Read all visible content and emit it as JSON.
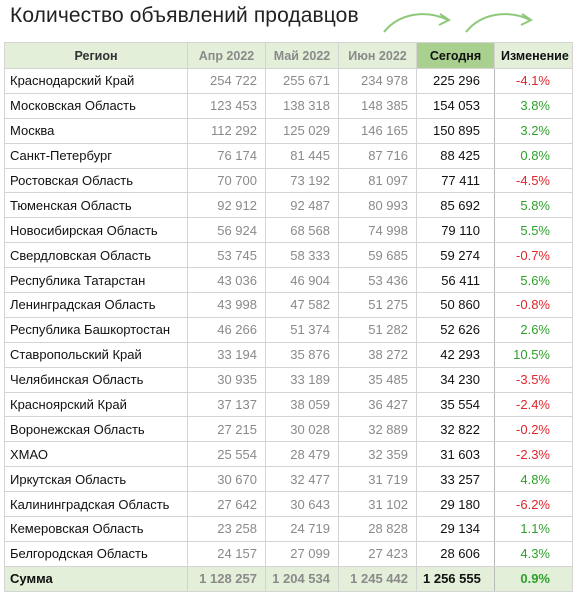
{
  "title": "Количество объявлений продавцов",
  "colors": {
    "header_bg": "#e3efd9",
    "today_header_bg": "#a9d08e",
    "negative": "#e0262b",
    "positive": "#2ea12a",
    "arrow": "#8fc87a"
  },
  "icons": [
    "arrow-icon",
    "arrow-icon"
  ],
  "headers": {
    "region": "Регион",
    "apr": "Апр 2022",
    "may": "Май 2022",
    "jun": "Июн 2022",
    "today": "Сегодня",
    "change": "Изменение"
  },
  "rows": [
    {
      "region": "Краснодарский Край",
      "apr": "254 722",
      "may": "255 671",
      "jun": "234 978",
      "today": "225 296",
      "change": "-4.1%",
      "trend": "neg"
    },
    {
      "region": "Московская Область",
      "apr": "123 453",
      "may": "138 318",
      "jun": "148 385",
      "today": "154 053",
      "change": "3.8%",
      "trend": "pos"
    },
    {
      "region": "Москва",
      "apr": "112 292",
      "may": "125 029",
      "jun": "146 165",
      "today": "150 895",
      "change": "3.2%",
      "trend": "pos"
    },
    {
      "region": "Санкт-Петербург",
      "apr": "76 174",
      "may": "81 445",
      "jun": "87 716",
      "today": "88 425",
      "change": "0.8%",
      "trend": "pos"
    },
    {
      "region": "Ростовская Область",
      "apr": "70 700",
      "may": "73 192",
      "jun": "81 097",
      "today": "77 411",
      "change": "-4.5%",
      "trend": "neg"
    },
    {
      "region": "Тюменская Область",
      "apr": "92 912",
      "may": "92 487",
      "jun": "80 993",
      "today": "85 692",
      "change": "5.8%",
      "trend": "pos"
    },
    {
      "region": "Новосибирская Область",
      "apr": "56 924",
      "may": "68 568",
      "jun": "74 998",
      "today": "79 110",
      "change": "5.5%",
      "trend": "pos"
    },
    {
      "region": "Свердловская Область",
      "apr": "53 745",
      "may": "58 333",
      "jun": "59 685",
      "today": "59 274",
      "change": "-0.7%",
      "trend": "neg"
    },
    {
      "region": "Республика Татарстан",
      "apr": "43 036",
      "may": "46 904",
      "jun": "53 436",
      "today": "56 411",
      "change": "5.6%",
      "trend": "pos"
    },
    {
      "region": "Ленинградская Область",
      "apr": "43 998",
      "may": "47 582",
      "jun": "51 275",
      "today": "50 860",
      "change": "-0.8%",
      "trend": "neg"
    },
    {
      "region": "Республика Башкортостан",
      "apr": "46 266",
      "may": "51 374",
      "jun": "51 282",
      "today": "52 626",
      "change": "2.6%",
      "trend": "pos"
    },
    {
      "region": "Ставропольский Край",
      "apr": "33 194",
      "may": "35 876",
      "jun": "38 272",
      "today": "42 293",
      "change": "10.5%",
      "trend": "pos"
    },
    {
      "region": "Челябинская Область",
      "apr": "30 935",
      "may": "33 189",
      "jun": "35 485",
      "today": "34 230",
      "change": "-3.5%",
      "trend": "neg"
    },
    {
      "region": "Красноярский Край",
      "apr": "37 137",
      "may": "38 059",
      "jun": "36 427",
      "today": "35 554",
      "change": "-2.4%",
      "trend": "neg"
    },
    {
      "region": "Воронежская Область",
      "apr": "27 215",
      "may": "30 028",
      "jun": "32 889",
      "today": "32 822",
      "change": "-0.2%",
      "trend": "neg"
    },
    {
      "region": "ХМАО",
      "apr": "25 554",
      "may": "28 479",
      "jun": "32 359",
      "today": "31 603",
      "change": "-2.3%",
      "trend": "neg"
    },
    {
      "region": "Иркутская Область",
      "apr": "30 670",
      "may": "32 477",
      "jun": "31 719",
      "today": "33 257",
      "change": "4.8%",
      "trend": "pos"
    },
    {
      "region": "Калининградская Область",
      "apr": "27 642",
      "may": "30 643",
      "jun": "31 102",
      "today": "29 180",
      "change": "-6.2%",
      "trend": "neg"
    },
    {
      "region": "Кемеровская Область",
      "apr": "23 258",
      "may": "24 719",
      "jun": "28 828",
      "today": "29 134",
      "change": "1.1%",
      "trend": "pos"
    },
    {
      "region": "Белгородская Область",
      "apr": "24 157",
      "may": "27 099",
      "jun": "27 423",
      "today": "28 606",
      "change": "4.3%",
      "trend": "pos"
    }
  ],
  "total": {
    "region": "Сумма",
    "apr": "1 128 257",
    "may": "1 204 534",
    "jun": "1 245 442",
    "today": "1 256 555",
    "change": "0.9%",
    "trend": "pos"
  }
}
